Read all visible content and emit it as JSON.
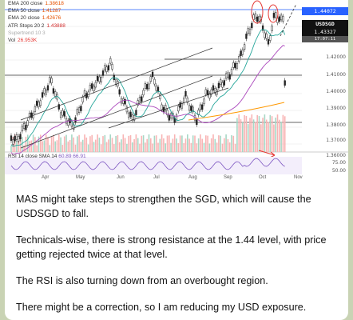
{
  "legend": {
    "ema200_label": "EMA 200 close",
    "ema200_value": "1.38618",
    "ema50_label": "EMA 50 close",
    "ema50_value": "1.41287",
    "ema20_label": "EMA 20 close",
    "ema20_value": "1.42676",
    "atr_label": "ATR Stops 20 2",
    "atr_value": "1.43888",
    "supertrend_label": "Supertrend 10 3",
    "vol_label": "Vol",
    "vol_value": "26.953K"
  },
  "price_tags": {
    "top": "1.44072",
    "pair": "USDSGD",
    "pair_price": "1.43327",
    "pair_time": "17:07:11"
  },
  "price_axis": [
    "1.42000",
    "1.41000",
    "1.40000",
    "1.39000",
    "1.38000",
    "1.37000",
    "1.36000"
  ],
  "rsi_axis": [
    "75.00",
    "50.00"
  ],
  "rsi": {
    "label": "RSI 14 close SMA 14",
    "values": "60.89  66.91"
  },
  "months": [
    "Apr",
    "May",
    "Jun",
    "Jul",
    "Aug",
    "Sep",
    "Oct",
    "Nov"
  ],
  "colors": {
    "ema200": "#2962ff",
    "ema50": "#ab47bc",
    "ema20": "#26a69a",
    "atr": "#f44336",
    "rsi": "#7e57c2",
    "annotation": "#e53935"
  },
  "message": {
    "p1": "MAS might take steps to strengthen the SGD, which will cause the USDSGD to fall.",
    "p2": "Technicals-wise, there is strong resistance at the 1.44 level, with price getting rejected twice at that level.",
    "p3": "The RSI is also turning down from an overbought region.",
    "p4": "There might be a correction, so I am reducing my USD exposure."
  }
}
